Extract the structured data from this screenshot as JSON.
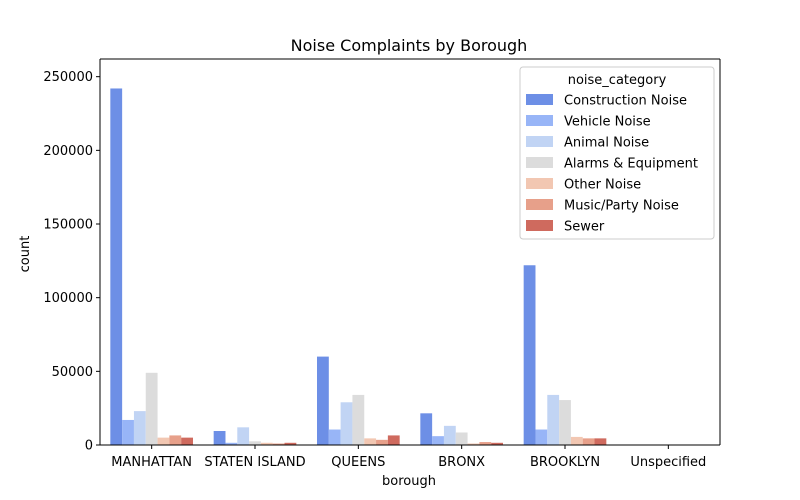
{
  "chart_data": {
    "type": "bar",
    "title": "Noise Complaints by Borough",
    "xlabel": "borough",
    "ylabel": "count",
    "ylim": [
      0,
      262000
    ],
    "yticks": [
      0,
      50000,
      100000,
      150000,
      200000,
      250000
    ],
    "categories": [
      "MANHATTAN",
      "STATEN ISLAND",
      "QUEENS",
      "BRONX",
      "BROOKLYN",
      "Unspecified"
    ],
    "legend": {
      "title": "noise_category",
      "placement": "top-right"
    },
    "series": [
      {
        "name": "Construction Noise",
        "color": "#6d8fe6",
        "values": [
          242000,
          9500,
          60000,
          21500,
          122000,
          0
        ]
      },
      {
        "name": "Vehicle Noise",
        "color": "#98b5f7",
        "values": [
          17000,
          1500,
          10500,
          6000,
          10500,
          0
        ]
      },
      {
        "name": "Animal Noise",
        "color": "#c1d4f4",
        "values": [
          23000,
          12000,
          29000,
          13000,
          34000,
          0
        ]
      },
      {
        "name": "Alarms & Equipment",
        "color": "#dcdcdc",
        "values": [
          49000,
          2500,
          34000,
          8500,
          30500,
          0
        ]
      },
      {
        "name": "Other Noise",
        "color": "#f2c7b2",
        "values": [
          5000,
          1500,
          4500,
          1000,
          5500,
          0
        ]
      },
      {
        "name": "Music/Party Noise",
        "color": "#e7a08a",
        "values": [
          6500,
          1000,
          3500,
          2000,
          4500,
          0
        ]
      },
      {
        "name": "Sewer",
        "color": "#cf6a5e",
        "values": [
          5000,
          1500,
          6500,
          1500,
          4500,
          0
        ]
      }
    ]
  }
}
